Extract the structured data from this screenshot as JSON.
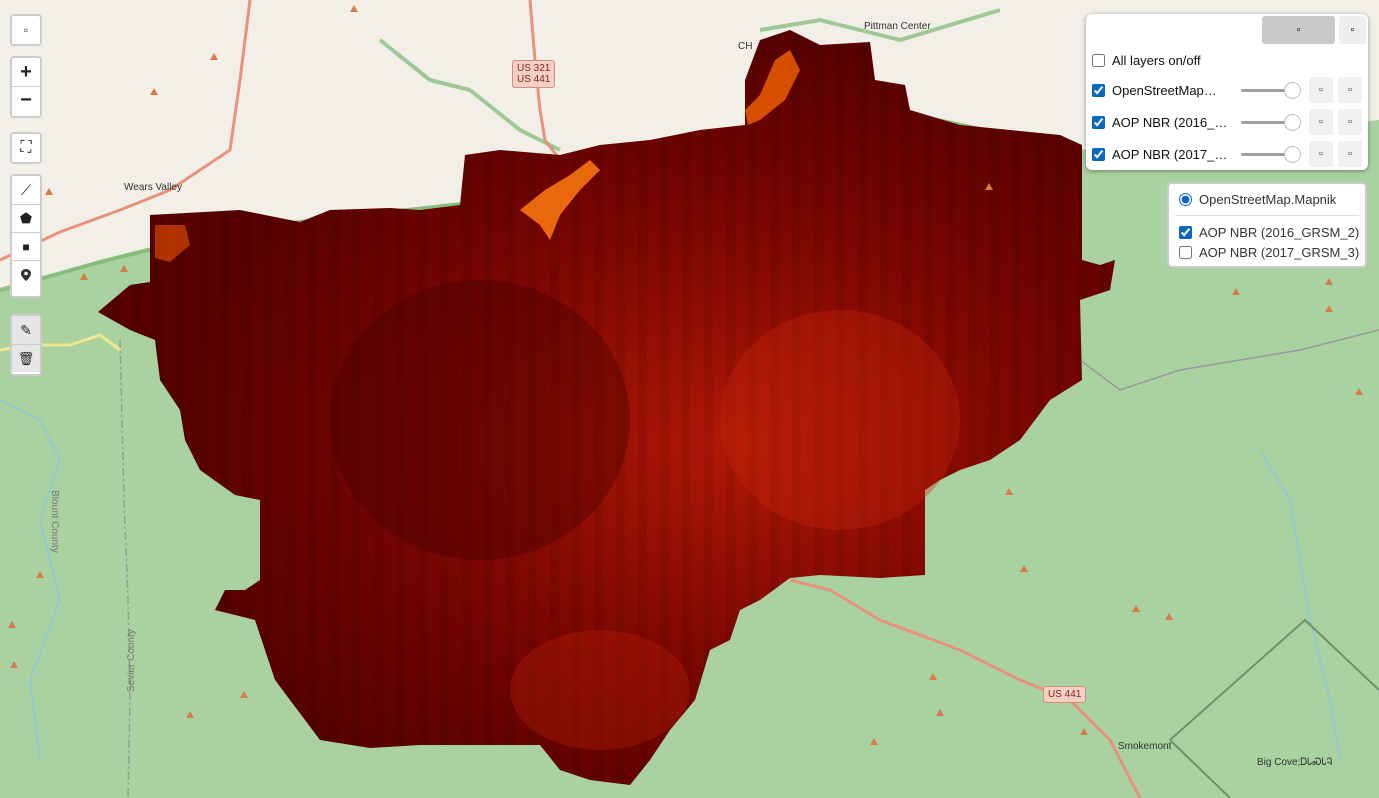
{
  "map": {
    "places": [
      "Pittman Center",
      "Wears Valley",
      "Smokemont",
      "Big Cove",
      "ᎠᏓᏍᏓᎸ"
    ],
    "places_partial": [
      "CH"
    ],
    "roads": {
      "us321": "US 321",
      "us441_top": "US 441",
      "us441_bottom": "US 441"
    },
    "counties": [
      "Blount County",
      "Sevier County"
    ]
  },
  "toolbar": {
    "zoom_in": "+",
    "zoom_out": "−",
    "fullscreen": "⛶",
    "polyline": "⟋",
    "polygon": "⬟",
    "rectangle": "■",
    "marker": "⬤",
    "edit": "✎",
    "delete": "🗑"
  },
  "layers_panel": {
    "all_layers_label": "All layers on/off",
    "all_layers_checked": false,
    "layers": [
      {
        "name": "OpenStreetMap.Mapnik",
        "checked": true,
        "opacity": 1.0
      },
      {
        "name": "AOP NBR (2016_GRSM_2)",
        "checked": true,
        "opacity": 1.0
      },
      {
        "name": "AOP NBR (2017_GRSM_3)",
        "checked": true,
        "opacity": 1.0
      }
    ]
  },
  "basemap_panel": {
    "base": {
      "label": "OpenStreetMap.Mapnik",
      "selected": true
    },
    "overlays": [
      {
        "label": "AOP NBR (2016_GRSM_2)",
        "checked": true
      },
      {
        "label": "AOP NBR (2017_GRSM_3)",
        "checked": false
      }
    ]
  },
  "colors": {
    "forest": "#a9d2a0",
    "urban": "#f2efe9",
    "nbr_dark": "#5c0000",
    "nbr_mid": "#8a0a02",
    "nbr_bright": "#ff6a00",
    "road_major": "#e8927c",
    "road_secondary": "#f7fabf",
    "park_border": "#7cb872"
  }
}
